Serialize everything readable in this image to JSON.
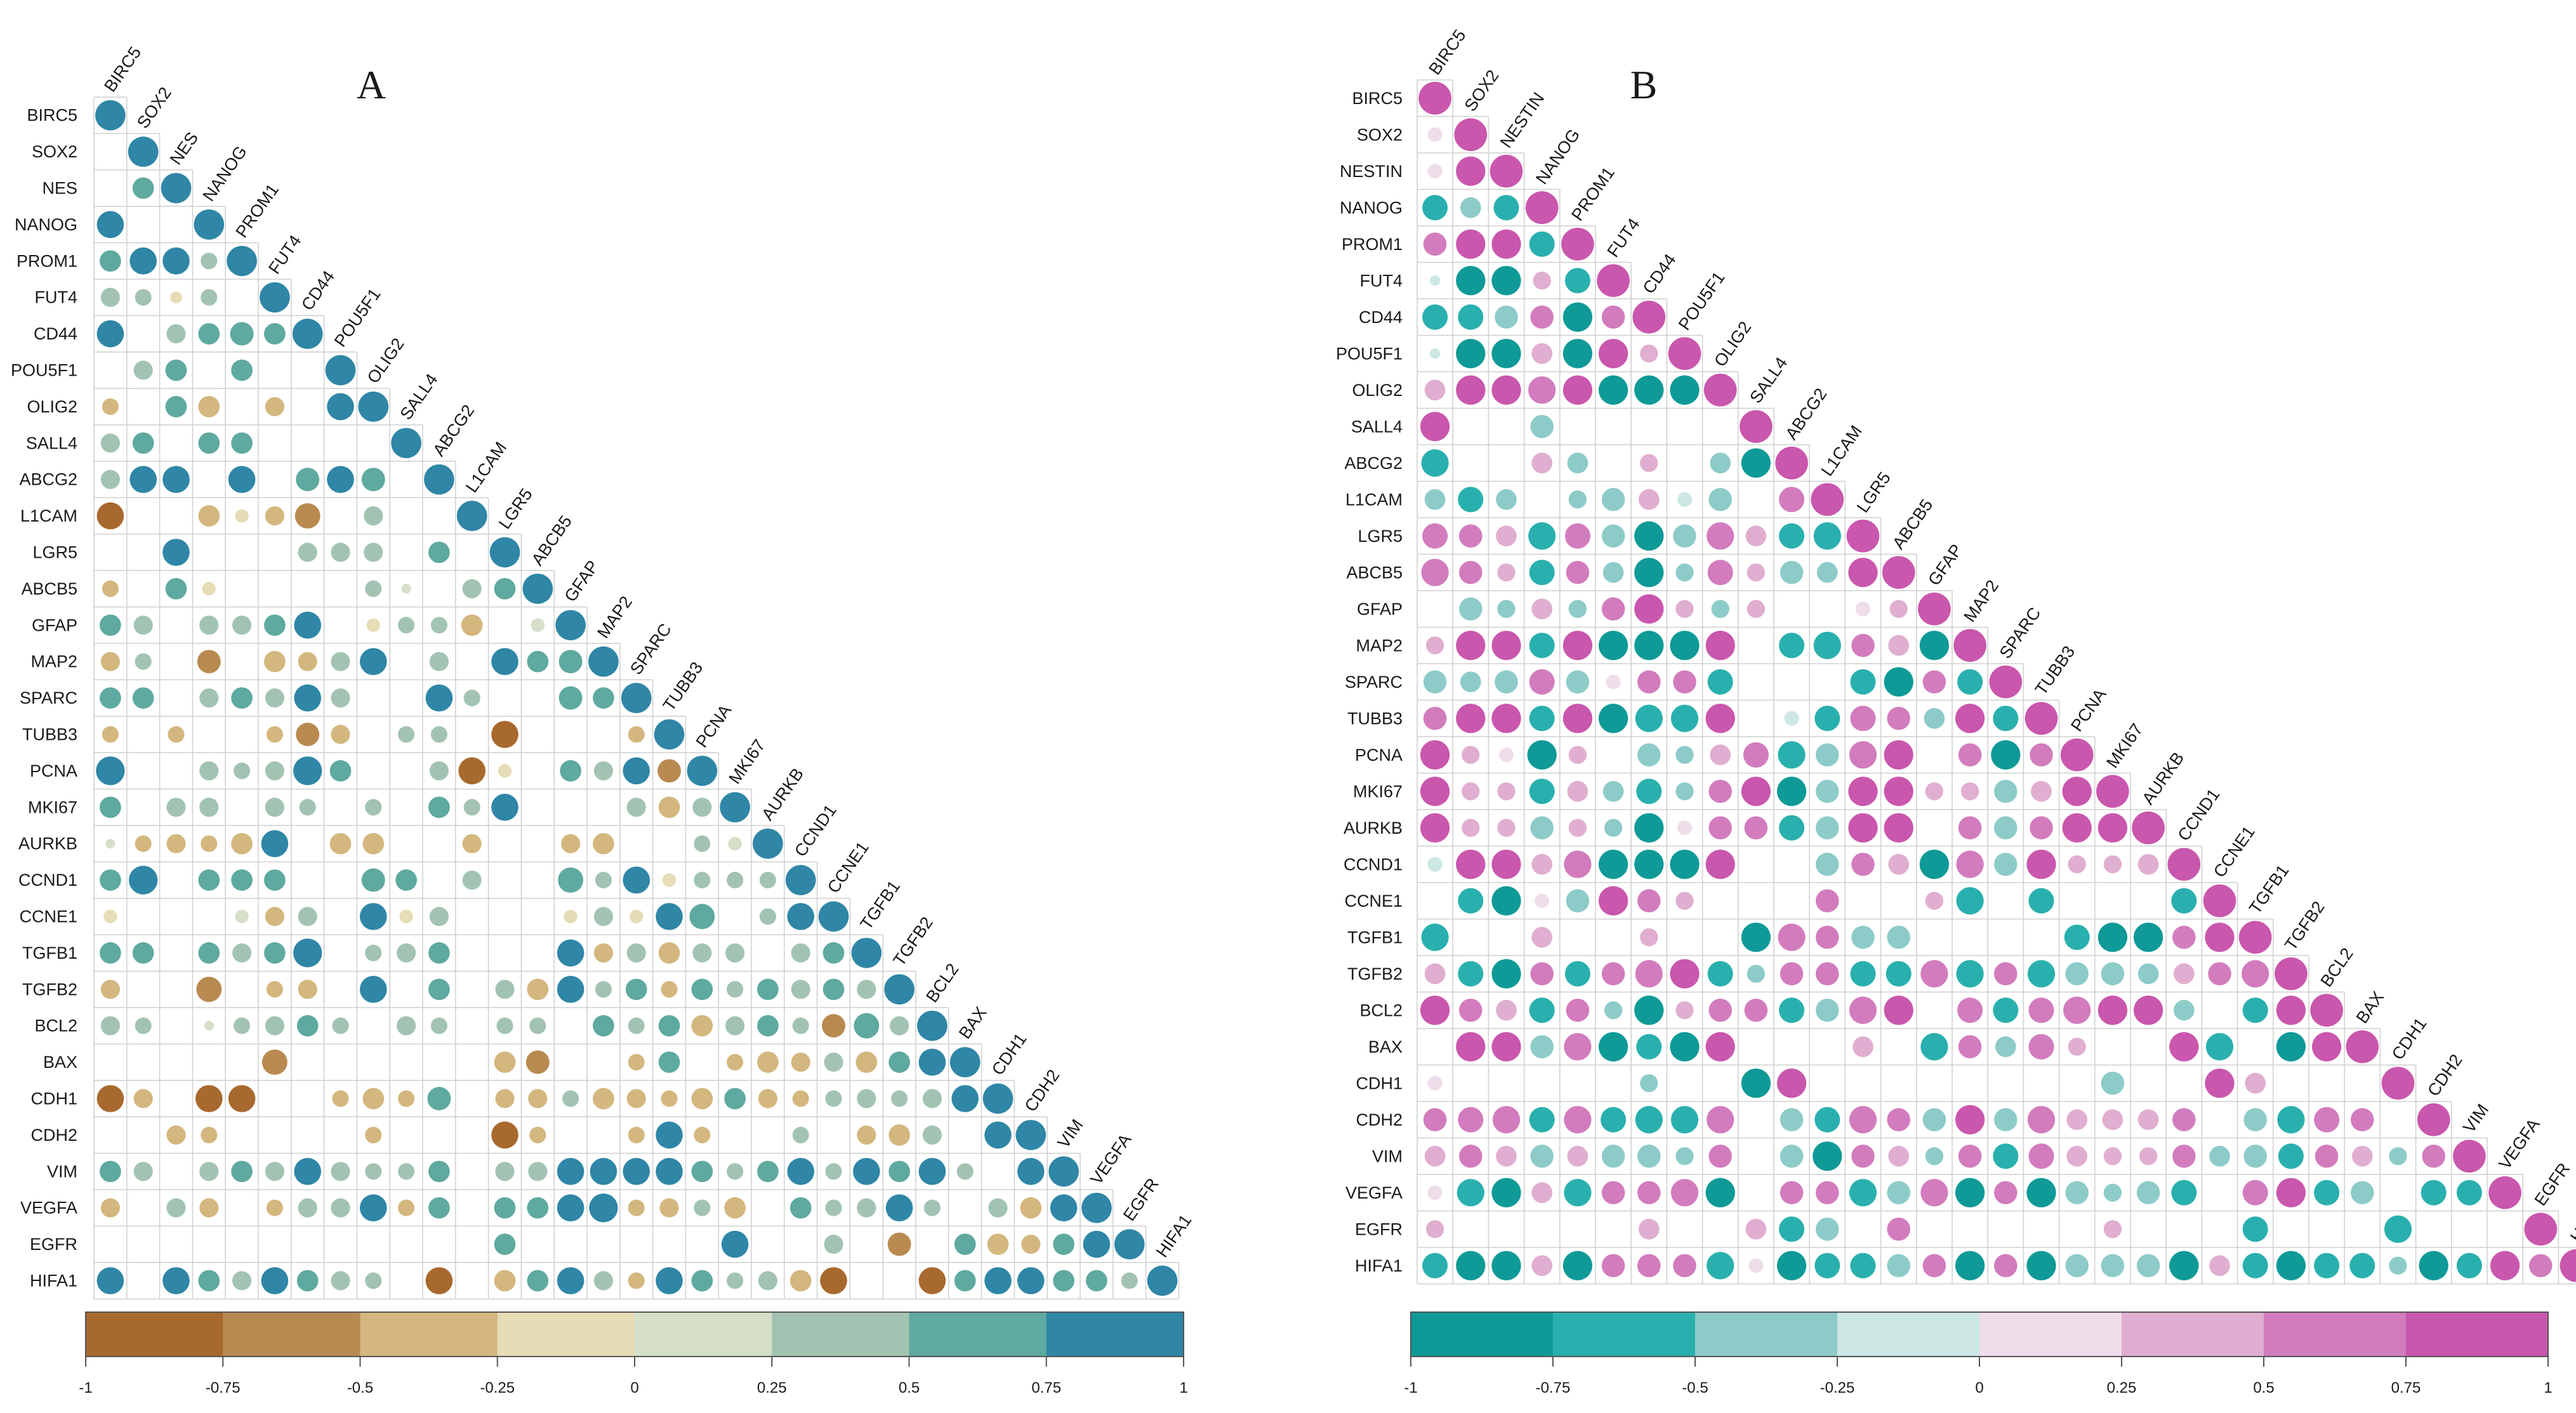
{
  "figure": {
    "panels": [
      "A",
      "B"
    ]
  },
  "chart_data": [
    {
      "type": "heatmap",
      "subtype": "correlation-circle-lower-triangle",
      "title": "A",
      "variables": [
        "BIRC5",
        "SOX2",
        "NES",
        "NANOG",
        "PROM1",
        "FUT4",
        "CD44",
        "POU5F1",
        "OLIG2",
        "SALL4",
        "ABCG2",
        "L1CAM",
        "LGR5",
        "ABCB5",
        "GFAP",
        "MAP2",
        "SPARC",
        "TUBB3",
        "PCNA",
        "MKI67",
        "AURKB",
        "CCND1",
        "CCNE1",
        "TGFB1",
        "TGFB2",
        "BCL2",
        "BAX",
        "CDH1",
        "CDH2",
        "VIM",
        "VEGFA",
        "EGFR",
        "HIFA1"
      ],
      "value_range": [
        -1,
        1
      ],
      "colorbar_ticks": [
        "-1",
        "-0.75",
        "-0.5",
        "-0.25",
        "0",
        "0.25",
        "0.5",
        "0.75",
        "1"
      ],
      "colorbar_colors": [
        "#a8692e",
        "#b98a50",
        "#d3b77e",
        "#e6dcb6",
        "#d6dfc8",
        "#a3c3b2",
        "#5ea9a0",
        "#2f86a6"
      ],
      "diagonal": 1,
      "lower_triangle_rows_estimated": [
        [],
        [
          0
        ],
        [
          0,
          0.5
        ],
        [
          0.8,
          0,
          0
        ],
        [
          0.5,
          0.8,
          0.8,
          0.3
        ],
        [
          0.4,
          0.3,
          -0.15,
          0.3
        ],
        [
          0.8,
          0,
          0.4,
          0.5,
          0.6,
          0.5
        ],
        [
          0,
          0.4,
          0.5,
          0,
          0.5,
          0,
          0
        ],
        [
          -0.3,
          0,
          0.5,
          -0.5,
          0,
          -0.4,
          0,
          0.8
        ],
        [
          0.4,
          0.5,
          0,
          0.5,
          0.5,
          0,
          0,
          0,
          0
        ],
        [
          0.4,
          0.8,
          0.8,
          0,
          0.8,
          0,
          0.6,
          0.8,
          0.6,
          0,
          0
        ],
        [
          -0.8,
          0,
          0,
          -0.5,
          -0.2,
          -0.4,
          -0.7,
          0,
          0.4,
          0,
          0,
          0
        ],
        [
          0,
          0,
          0.8,
          0,
          0,
          0,
          0.4,
          0.4,
          0.4,
          0,
          0.5,
          0
        ],
        [
          -0.3,
          0,
          0.5,
          -0.2,
          0,
          0,
          0,
          0,
          0.3,
          0.1,
          0,
          0.4,
          0.5
        ],
        [
          0.5,
          0.4,
          0,
          0.4,
          0.4,
          0.5,
          0.8,
          0,
          -0.2,
          0.3,
          0.3,
          -0.5,
          0,
          0.2
        ],
        [
          -0.4,
          0.3,
          0,
          -0.6,
          0,
          -0.5,
          -0.4,
          0.4,
          0.8,
          0,
          0.4,
          0,
          0.8,
          0.5,
          0.6
        ],
        [
          0.5,
          0.5,
          0,
          0.4,
          0.5,
          0.4,
          0.8,
          0.4,
          0,
          0,
          0.8,
          0.3,
          0,
          0,
          0.6,
          0.5
        ],
        [
          -0.3,
          0,
          -0.3,
          0,
          0,
          -0.3,
          -0.6,
          -0.4,
          0,
          0.3,
          0.3,
          0,
          -0.8,
          0,
          0,
          0,
          -0.3
        ],
        [
          0.9,
          0,
          0,
          0.4,
          0.3,
          0.4,
          0.9,
          0.5,
          0,
          0,
          0.4,
          -0.8,
          -0.2,
          0,
          0.5,
          0.4,
          0.8,
          -0.6
        ],
        [
          0.5,
          0,
          0.4,
          0.4,
          0,
          0.4,
          0.3,
          0,
          0.3,
          0,
          0.5,
          0.3,
          0.8,
          0,
          0,
          0,
          0.4,
          -0.5,
          0.4
        ],
        [
          0.1,
          -0.3,
          -0.4,
          -0.3,
          -0.5,
          0.8,
          0,
          -0.5,
          -0.5,
          0,
          0,
          -0.4,
          0,
          0,
          -0.4,
          -0.5,
          0,
          0,
          0.3,
          0.2
        ],
        [
          0.5,
          0.9,
          0,
          0.5,
          0.5,
          0.5,
          0,
          0,
          0.6,
          0.5,
          0,
          0.4,
          0,
          0,
          0.7,
          0.3,
          0.8,
          -0.2,
          0.3,
          0.3,
          0.3
        ],
        [
          -0.2,
          0,
          0,
          0,
          0.2,
          -0.4,
          0.4,
          0,
          0.8,
          -0.2,
          0.4,
          0,
          0,
          0,
          -0.2,
          0.4,
          -0.2,
          0.8,
          0.7,
          0,
          0.3,
          0.8
        ],
        [
          0.5,
          0.5,
          0,
          0.5,
          0.4,
          0.5,
          0.9,
          0,
          0.3,
          0.4,
          0.5,
          0,
          0,
          0,
          0.8,
          -0.4,
          0.4,
          -0.5,
          0.4,
          0.4,
          0,
          0.4,
          0.5
        ],
        [
          -0.4,
          0,
          0,
          -0.7,
          0,
          -0.3,
          -0.4,
          0,
          0.8,
          0,
          0.5,
          0,
          0.4,
          -0.5,
          0.8,
          0.3,
          0.5,
          -0.3,
          0.5,
          0.3,
          0.5,
          0.4,
          0.5,
          0.4
        ],
        [
          0.4,
          0.3,
          0,
          0.1,
          0.3,
          0.4,
          0.5,
          0.3,
          0,
          0.4,
          0.3,
          0,
          0.3,
          0.3,
          0,
          0.5,
          0.3,
          0.5,
          -0.5,
          0.4,
          0.5,
          0.3,
          -0.6,
          0.7,
          0.4
        ],
        [
          0,
          0,
          0,
          0,
          0,
          -0.7,
          0,
          0,
          0,
          0,
          0,
          0,
          -0.5,
          -0.6,
          0,
          0,
          -0.3,
          0.5,
          0,
          -0.3,
          -0.5,
          -0.4,
          0.4,
          -0.5,
          0.5,
          0.8
        ],
        [
          -0.8,
          -0.4,
          0,
          -0.8,
          -0.8,
          0,
          0,
          -0.3,
          -0.5,
          -0.3,
          0.6,
          0,
          -0.4,
          -0.4,
          0.3,
          -0.5,
          -0.4,
          -0.3,
          -0.5,
          0.5,
          -0.4,
          -0.3,
          0.3,
          0.4,
          0.3,
          0.4,
          0.8
        ],
        [
          0,
          0,
          -0.4,
          -0.3,
          0,
          0,
          0,
          0,
          -0.3,
          0,
          0,
          0,
          -0.8,
          -0.3,
          0,
          0,
          -0.3,
          0.8,
          -0.3,
          0,
          0,
          0.3,
          0,
          -0.4,
          -0.5,
          0.4,
          0,
          0.8
        ],
        [
          0.5,
          0.4,
          0,
          0.4,
          0.5,
          0.4,
          0.8,
          0.4,
          0.3,
          0.3,
          0.5,
          0,
          0.4,
          0.4,
          0.8,
          0.8,
          0.8,
          0.8,
          0.5,
          0.3,
          0.5,
          0.8,
          0.3,
          0.8,
          0.5,
          0.8,
          0.3,
          0,
          0.8
        ],
        [
          -0.4,
          0,
          0.4,
          -0.4,
          0,
          -0.3,
          0.4,
          0.4,
          0.8,
          -0.3,
          0.5,
          0,
          0.5,
          0.5,
          0.8,
          0.9,
          -0.3,
          -0.4,
          0.3,
          -0.5,
          0,
          0.5,
          0.3,
          0.4,
          0.8,
          0.3,
          0,
          0.4,
          -0.5,
          0.8
        ],
        [
          0,
          0,
          0,
          0,
          0,
          0,
          0,
          0,
          0,
          0,
          0,
          0,
          0.5,
          0,
          0,
          0,
          0,
          0,
          0,
          0.8,
          0,
          0,
          0.4,
          0,
          -0.6,
          0,
          0.5,
          -0.5,
          -0.4,
          0.5,
          0.8
        ],
        [
          0.8,
          0,
          0.8,
          0.5,
          0.4,
          0.8,
          0.5,
          0.4,
          0.3,
          0,
          -0.8,
          0,
          -0.5,
          0.5,
          0.8,
          0.4,
          -0.3,
          0.8,
          0.5,
          0.3,
          0.4,
          -0.5,
          -0.8,
          0,
          0,
          -0.8,
          0.5,
          0.8,
          0.8,
          0.5,
          0.5,
          0.3
        ]
      ]
    },
    {
      "type": "heatmap",
      "subtype": "correlation-circle-lower-triangle",
      "title": "B",
      "variables": [
        "BIRC5",
        "SOX2",
        "NESTIN",
        "NANOG",
        "PROM1",
        "FUT4",
        "CD44",
        "POU5F1",
        "OLIG2",
        "SALL4",
        "ABCG2",
        "L1CAM",
        "LGR5",
        "ABCB5",
        "GFAP",
        "MAP2",
        "SPARC",
        "TUBB3",
        "PCNA",
        "MKI67",
        "AURKB",
        "CCND1",
        "CCNE1",
        "TGFB1",
        "TGFB2",
        "BCL2",
        "BAX",
        "CDH1",
        "CDH2",
        "VIM",
        "VEGFA",
        "EGFR",
        "HIFA1"
      ],
      "value_range": [
        -1,
        1
      ],
      "colorbar_ticks": [
        "-1",
        "-0.75",
        "-0.5",
        "-0.25",
        "0",
        "0.25",
        "0.5",
        "0.75",
        "1"
      ],
      "colorbar_colors": [
        "#0f9a97",
        "#29b0ae",
        "#8dcbc9",
        "#cce7e4",
        "#efdeea",
        "#e0aed0",
        "#d27cbd",
        "#c957ad"
      ],
      "diagonal": 1,
      "lower_triangle_rows_estimated": [
        [],
        [
          0.2
        ],
        [
          0.2,
          0.8
        ],
        [
          -0.6,
          -0.4,
          -0.6
        ],
        [
          0.5,
          0.8,
          0.8,
          -0.6
        ],
        [
          -0.1,
          -0.8,
          -0.8,
          0.3,
          -0.6
        ],
        [
          -0.6,
          -0.6,
          -0.5,
          0.5,
          -0.8,
          0.5
        ],
        [
          -0.1,
          -0.8,
          -0.8,
          0.4,
          -0.8,
          0.8,
          0.3
        ],
        [
          0.4,
          0.8,
          0.8,
          0.7,
          0.8,
          -0.8,
          -0.8,
          -0.8
        ],
        [
          0.8,
          0,
          0,
          -0.5,
          0,
          0,
          0,
          0,
          0
        ],
        [
          -0.7,
          0,
          0,
          0.4,
          -0.4,
          0,
          0.3,
          0,
          -0.4,
          -0.8
        ],
        [
          -0.4,
          -0.6,
          -0.4,
          0,
          -0.3,
          -0.5,
          0.4,
          -0.2,
          -0.5,
          0,
          0.6
        ],
        [
          0.6,
          0.5,
          0.4,
          -0.7,
          0.6,
          -0.5,
          -0.8,
          -0.5,
          0.7,
          0.4,
          -0.6,
          -0.7
        ],
        [
          0.7,
          0.5,
          0.3,
          -0.6,
          0.5,
          -0.4,
          -0.8,
          -0.3,
          0.6,
          0.3,
          -0.5,
          -0.4,
          0.8
        ],
        [
          0,
          -0.5,
          -0.3,
          0.4,
          -0.3,
          0.5,
          0.8,
          0.3,
          -0.3,
          0.3,
          0,
          0,
          0.2,
          0.3
        ],
        [
          0.3,
          0.8,
          0.8,
          -0.6,
          0.8,
          -0.8,
          -0.8,
          -0.8,
          0.8,
          0,
          -0.6,
          -0.7,
          0.5,
          0.4,
          -0.8
        ],
        [
          -0.5,
          -0.4,
          -0.5,
          0.6,
          -0.5,
          0.2,
          0.5,
          0.5,
          -0.6,
          0,
          0,
          0,
          -0.6,
          -0.8,
          0.5,
          -0.6
        ],
        [
          0.5,
          0.8,
          0.8,
          -0.6,
          0.8,
          -0.8,
          -0.7,
          -0.7,
          0.8,
          0,
          -0.2,
          -0.6,
          0.6,
          0.5,
          -0.4,
          0.8,
          -0.6
        ],
        [
          0.8,
          0.3,
          0.2,
          -0.8,
          0.3,
          0,
          -0.5,
          -0.3,
          0.4,
          0.6,
          -0.7,
          -0.5,
          0.7,
          0.8,
          0,
          0.5,
          -0.8,
          0.5
        ],
        [
          0.8,
          0.3,
          0.3,
          -0.6,
          0.4,
          -0.4,
          -0.6,
          -0.3,
          0.5,
          0.8,
          -0.8,
          -0.5,
          0.8,
          0.8,
          0.3,
          0.3,
          -0.5,
          0.4,
          0.8
        ],
        [
          0.8,
          0.3,
          0.3,
          -0.5,
          0.3,
          -0.3,
          -0.8,
          0.2,
          0.5,
          0.5,
          -0.6,
          -0.5,
          0.8,
          0.8,
          0,
          0.5,
          -0.5,
          0.5,
          0.8,
          0.8
        ],
        [
          -0.2,
          0.8,
          0.8,
          0.4,
          0.7,
          -0.8,
          -0.8,
          -0.8,
          0.8,
          0,
          0,
          -0.5,
          0.5,
          0.4,
          -0.8,
          0.7,
          -0.5,
          0.8,
          0.3,
          0.3,
          0.4
        ],
        [
          0,
          -0.6,
          -0.8,
          0.2,
          -0.5,
          0.8,
          0.5,
          0.3,
          0,
          0,
          0,
          0.5,
          0,
          0,
          0.3,
          -0.7,
          0,
          -0.6,
          0,
          0,
          0,
          -0.6
        ],
        [
          -0.7,
          0,
          0,
          0.4,
          0,
          0,
          0.3,
          0,
          0,
          -0.8,
          0.7,
          0.5,
          -0.5,
          -0.5,
          0,
          0,
          0,
          0,
          -0.6,
          -0.8,
          -0.8,
          0.5,
          0.8
        ],
        [
          0.4,
          -0.6,
          -0.8,
          0.5,
          -0.6,
          0.5,
          0.7,
          0.8,
          -0.6,
          -0.3,
          0.5,
          0.5,
          -0.6,
          -0.6,
          0.7,
          -0.7,
          0.5,
          -0.7,
          -0.5,
          -0.5,
          -0.4,
          0.4,
          0.5,
          0.7
        ],
        [
          0.8,
          0.5,
          0.4,
          -0.6,
          0.5,
          -0.3,
          -0.8,
          0.3,
          0.5,
          0.5,
          -0.6,
          -0.5,
          0.7,
          0.8,
          0,
          0.6,
          -0.6,
          0.6,
          0.7,
          0.8,
          0.8,
          -0.4,
          0,
          -0.6,
          0.8
        ],
        [
          0,
          0.8,
          0.8,
          -0.5,
          0.7,
          -0.8,
          -0.6,
          -0.8,
          0.8,
          0,
          0,
          0,
          0.4,
          0,
          -0.7,
          0.5,
          -0.4,
          0.6,
          0.3,
          0,
          0,
          0.8,
          -0.7,
          0,
          -0.8,
          0.8
        ],
        [
          0.2,
          0,
          0,
          0,
          0,
          0,
          -0.3,
          0,
          0,
          -0.8,
          0.8,
          0,
          0,
          0,
          0,
          0,
          0,
          0,
          0,
          -0.5,
          0,
          0,
          0.8,
          0.4,
          0,
          0,
          0
        ],
        [
          0.5,
          0.6,
          0.7,
          -0.6,
          0.7,
          -0.6,
          -0.7,
          -0.7,
          0.7,
          0,
          -0.5,
          -0.6,
          0.7,
          0.5,
          -0.5,
          0.8,
          -0.5,
          0.7,
          0.4,
          0.4,
          0.4,
          0.5,
          0,
          -0.5,
          -0.7,
          0.6,
          0.5,
          0,
          0.8
        ],
        [
          0.4,
          0.5,
          0.4,
          -0.5,
          0.4,
          -0.5,
          -0.5,
          -0.3,
          0.5,
          0,
          -0.5,
          -0.8,
          0.5,
          0.4,
          -0.3,
          0.5,
          -0.6,
          0.6,
          0.4,
          0.3,
          0.3,
          0.5,
          -0.4,
          -0.5,
          -0.6,
          0.5,
          0.4,
          -0.3,
          0.5,
          0.8
        ],
        [
          0.2,
          -0.7,
          -0.8,
          0.4,
          -0.7,
          0.5,
          0.5,
          0.7,
          -0.8,
          0,
          0.5,
          0.5,
          -0.7,
          -0.5,
          0.7,
          -0.8,
          0.5,
          -0.8,
          -0.5,
          -0.3,
          -0.5,
          -0.6,
          0,
          0.6,
          0.8,
          -0.6,
          -0.5,
          0,
          -0.6,
          -0.6,
          0.8
        ],
        [
          0.3,
          0,
          0,
          0,
          0,
          0,
          0.4,
          0,
          0,
          0.4,
          -0.6,
          -0.5,
          0,
          0.5,
          0,
          0,
          0,
          0,
          0,
          0.3,
          0,
          0,
          0,
          -0.6,
          0,
          0,
          0,
          -0.7,
          0,
          0,
          0,
          0.8
        ],
        [
          -0.6,
          -0.8,
          -0.8,
          0.4,
          -0.8,
          0.5,
          0.5,
          0.5,
          -0.7,
          0.2,
          -0.8,
          -0.6,
          -0.6,
          -0.5,
          0.5,
          -0.8,
          0.5,
          -0.8,
          -0.5,
          -0.5,
          -0.5,
          -0.8,
          0.4,
          -0.6,
          -0.8,
          -0.6,
          -0.6,
          -0.3,
          -0.8,
          -0.6,
          0.8,
          0.5
        ]
      ]
    }
  ]
}
